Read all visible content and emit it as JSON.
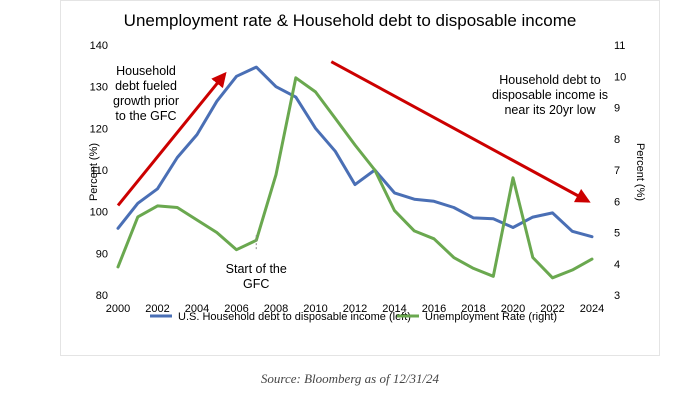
{
  "chart_data": {
    "type": "line",
    "title": "Unemployment rate & Household debt to disposable income",
    "x": [
      2000,
      2001,
      2002,
      2003,
      2004,
      2005,
      2006,
      2007,
      2008,
      2009,
      2010,
      2011,
      2012,
      2013,
      2014,
      2015,
      2016,
      2017,
      2018,
      2019,
      2020,
      2021,
      2022,
      2023,
      2024
    ],
    "x_ticks": [
      2000,
      2002,
      2004,
      2006,
      2008,
      2010,
      2012,
      2014,
      2016,
      2018,
      2020,
      2022,
      2024
    ],
    "series": [
      {
        "name": "U.S. Household debt to disposable income (left)",
        "axis": "left",
        "color": "#4a6fb5",
        "values": [
          96,
          102,
          105.5,
          113,
          118.5,
          126.5,
          132.5,
          134.7,
          130,
          127.5,
          120,
          114.5,
          106.5,
          110,
          104.5,
          103,
          102.5,
          101,
          98.5,
          98.3,
          96.2,
          98.7,
          99.7,
          95.3,
          94
        ]
      },
      {
        "name": "Unemployment Rate (right)",
        "axis": "right",
        "color": "#6aa84f",
        "values": [
          3.9,
          5.5,
          5.85,
          5.8,
          5.4,
          5.0,
          4.45,
          4.75,
          6.85,
          9.95,
          9.5,
          8.65,
          7.8,
          7.0,
          5.7,
          5.05,
          4.8,
          4.2,
          3.85,
          3.6,
          6.75,
          4.2,
          3.55,
          3.8,
          4.15
        ]
      }
    ],
    "ylabel_left": "Percent (%)",
    "ylabel_right": "Percent (%)",
    "ylim_left": [
      80,
      140
    ],
    "ylim_right": [
      3,
      11
    ],
    "yticks_left": [
      80,
      90,
      100,
      110,
      120,
      130,
      140
    ],
    "yticks_right": [
      3,
      4,
      5,
      6,
      7,
      8,
      9,
      10,
      11
    ],
    "grid": false,
    "legend_position": "bottom",
    "annotations": [
      {
        "id": "left",
        "lines": [
          "Household",
          "debt fueled",
          "growth prior",
          "to the GFC"
        ],
        "arrow": {
          "color": "#cc0000",
          "from": [
            2000,
            101.5
          ],
          "to": [
            2005.4,
            133
          ]
        }
      },
      {
        "id": "gfc",
        "lines": [
          "Start of the",
          "GFC"
        ],
        "marker": {
          "x": 2007,
          "y": 91
        }
      },
      {
        "id": "right",
        "lines": [
          "Household debt to",
          "disposable income is",
          "near its 20yr low"
        ],
        "arrow": {
          "color": "#cc0000",
          "from": [
            2010.8,
            136
          ],
          "to": [
            2023.8,
            102.5
          ]
        }
      }
    ]
  },
  "source_note": "Source: Bloomberg as of 12/31/24"
}
